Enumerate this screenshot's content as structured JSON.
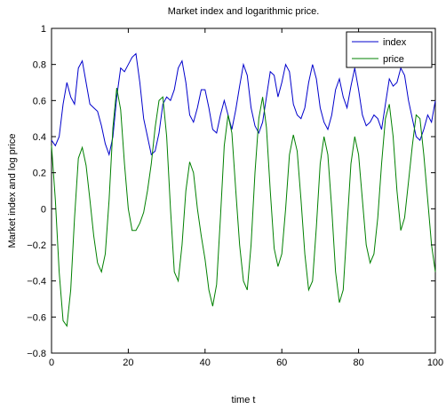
{
  "chart_data": {
    "type": "line",
    "title": "Market index and logarithmic price.",
    "xlabel": "time t",
    "ylabel": "Market index and log price",
    "xlim": [
      0,
      100
    ],
    "ylim": [
      -0.8,
      1
    ],
    "x_ticks": [
      0,
      20,
      40,
      60,
      80,
      100
    ],
    "y_ticks": [
      -0.8,
      -0.6,
      -0.4,
      -0.2,
      0,
      0.2,
      0.4,
      0.6,
      0.8,
      1
    ],
    "x_tick_labels": [
      "0",
      "20",
      "40",
      "60",
      "80",
      "100"
    ],
    "y_tick_labels": [
      "−0.8",
      "−0.6",
      "−0.4",
      "−0.2",
      "0",
      "0.2",
      "0.4",
      "0.6",
      "0.8",
      "1"
    ],
    "grid": false,
    "legend_position": "top-right",
    "series": [
      {
        "name": "index",
        "color": "#0000cc",
        "points": [
          [
            0,
            0.38
          ],
          [
            1,
            0.35
          ],
          [
            2,
            0.4
          ],
          [
            3,
            0.58
          ],
          [
            4,
            0.7
          ],
          [
            5,
            0.62
          ],
          [
            6,
            0.58
          ],
          [
            7,
            0.78
          ],
          [
            8,
            0.82
          ],
          [
            9,
            0.7
          ],
          [
            10,
            0.58
          ],
          [
            11,
            0.56
          ],
          [
            12,
            0.54
          ],
          [
            13,
            0.46
          ],
          [
            14,
            0.36
          ],
          [
            15,
            0.3
          ],
          [
            16,
            0.4
          ],
          [
            17,
            0.62
          ],
          [
            18,
            0.78
          ],
          [
            19,
            0.76
          ],
          [
            20,
            0.8
          ],
          [
            21,
            0.84
          ],
          [
            22,
            0.86
          ],
          [
            23,
            0.7
          ],
          [
            24,
            0.5
          ],
          [
            25,
            0.4
          ],
          [
            26,
            0.3
          ],
          [
            27,
            0.32
          ],
          [
            28,
            0.42
          ],
          [
            29,
            0.58
          ],
          [
            30,
            0.62
          ],
          [
            31,
            0.6
          ],
          [
            32,
            0.66
          ],
          [
            33,
            0.78
          ],
          [
            34,
            0.82
          ],
          [
            35,
            0.7
          ],
          [
            36,
            0.52
          ],
          [
            37,
            0.48
          ],
          [
            38,
            0.56
          ],
          [
            39,
            0.66
          ],
          [
            40,
            0.66
          ],
          [
            41,
            0.56
          ],
          [
            42,
            0.44
          ],
          [
            43,
            0.42
          ],
          [
            44,
            0.52
          ],
          [
            45,
            0.6
          ],
          [
            46,
            0.52
          ],
          [
            47,
            0.44
          ],
          [
            48,
            0.55
          ],
          [
            49,
            0.68
          ],
          [
            50,
            0.8
          ],
          [
            51,
            0.74
          ],
          [
            52,
            0.56
          ],
          [
            53,
            0.46
          ],
          [
            54,
            0.42
          ],
          [
            55,
            0.48
          ],
          [
            56,
            0.62
          ],
          [
            57,
            0.76
          ],
          [
            58,
            0.74
          ],
          [
            59,
            0.62
          ],
          [
            60,
            0.7
          ],
          [
            61,
            0.8
          ],
          [
            62,
            0.76
          ],
          [
            63,
            0.58
          ],
          [
            64,
            0.52
          ],
          [
            65,
            0.5
          ],
          [
            66,
            0.56
          ],
          [
            67,
            0.7
          ],
          [
            68,
            0.8
          ],
          [
            69,
            0.72
          ],
          [
            70,
            0.56
          ],
          [
            71,
            0.48
          ],
          [
            72,
            0.44
          ],
          [
            73,
            0.52
          ],
          [
            74,
            0.66
          ],
          [
            75,
            0.72
          ],
          [
            76,
            0.62
          ],
          [
            77,
            0.56
          ],
          [
            78,
            0.68
          ],
          [
            79,
            0.78
          ],
          [
            80,
            0.66
          ],
          [
            81,
            0.52
          ],
          [
            82,
            0.46
          ],
          [
            83,
            0.48
          ],
          [
            84,
            0.52
          ],
          [
            85,
            0.5
          ],
          [
            86,
            0.44
          ],
          [
            87,
            0.58
          ],
          [
            88,
            0.72
          ],
          [
            89,
            0.68
          ],
          [
            90,
            0.7
          ],
          [
            91,
            0.78
          ],
          [
            92,
            0.74
          ],
          [
            93,
            0.6
          ],
          [
            94,
            0.5
          ],
          [
            95,
            0.4
          ],
          [
            96,
            0.38
          ],
          [
            97,
            0.44
          ],
          [
            98,
            0.52
          ],
          [
            99,
            0.48
          ],
          [
            100,
            0.6
          ]
        ]
      },
      {
        "name": "price",
        "color": "#008000",
        "points": [
          [
            0,
            0.35
          ],
          [
            1,
            0.05
          ],
          [
            2,
            -0.35
          ],
          [
            3,
            -0.62
          ],
          [
            4,
            -0.65
          ],
          [
            5,
            -0.45
          ],
          [
            6,
            -0.05
          ],
          [
            7,
            0.28
          ],
          [
            8,
            0.34
          ],
          [
            9,
            0.24
          ],
          [
            10,
            0.05
          ],
          [
            11,
            -0.15
          ],
          [
            12,
            -0.3
          ],
          [
            13,
            -0.35
          ],
          [
            14,
            -0.25
          ],
          [
            15,
            0.05
          ],
          [
            16,
            0.45
          ],
          [
            17,
            0.67
          ],
          [
            18,
            0.55
          ],
          [
            19,
            0.25
          ],
          [
            20,
            0.0
          ],
          [
            21,
            -0.12
          ],
          [
            22,
            -0.12
          ],
          [
            23,
            -0.08
          ],
          [
            24,
            -0.02
          ],
          [
            25,
            0.1
          ],
          [
            26,
            0.25
          ],
          [
            27,
            0.45
          ],
          [
            28,
            0.6
          ],
          [
            29,
            0.62
          ],
          [
            30,
            0.4
          ],
          [
            31,
            0.0
          ],
          [
            32,
            -0.35
          ],
          [
            33,
            -0.4
          ],
          [
            34,
            -0.2
          ],
          [
            35,
            0.1
          ],
          [
            36,
            0.26
          ],
          [
            37,
            0.2
          ],
          [
            38,
            0.0
          ],
          [
            39,
            -0.15
          ],
          [
            40,
            -0.28
          ],
          [
            41,
            -0.45
          ],
          [
            42,
            -0.54
          ],
          [
            43,
            -0.42
          ],
          [
            44,
            -0.05
          ],
          [
            45,
            0.35
          ],
          [
            46,
            0.52
          ],
          [
            47,
            0.42
          ],
          [
            48,
            0.1
          ],
          [
            49,
            -0.2
          ],
          [
            50,
            -0.4
          ],
          [
            51,
            -0.45
          ],
          [
            52,
            -0.2
          ],
          [
            53,
            0.2
          ],
          [
            54,
            0.5
          ],
          [
            55,
            0.62
          ],
          [
            56,
            0.45
          ],
          [
            57,
            0.1
          ],
          [
            58,
            -0.22
          ],
          [
            59,
            -0.32
          ],
          [
            60,
            -0.25
          ],
          [
            61,
            0.0
          ],
          [
            62,
            0.3
          ],
          [
            63,
            0.41
          ],
          [
            64,
            0.32
          ],
          [
            65,
            0.05
          ],
          [
            66,
            -0.25
          ],
          [
            67,
            -0.45
          ],
          [
            68,
            -0.4
          ],
          [
            69,
            -0.1
          ],
          [
            70,
            0.25
          ],
          [
            71,
            0.4
          ],
          [
            72,
            0.3
          ],
          [
            73,
            0.0
          ],
          [
            74,
            -0.35
          ],
          [
            75,
            -0.52
          ],
          [
            76,
            -0.45
          ],
          [
            77,
            -0.1
          ],
          [
            78,
            0.25
          ],
          [
            79,
            0.4
          ],
          [
            80,
            0.3
          ],
          [
            81,
            0.05
          ],
          [
            82,
            -0.2
          ],
          [
            83,
            -0.3
          ],
          [
            84,
            -0.25
          ],
          [
            85,
            -0.05
          ],
          [
            86,
            0.25
          ],
          [
            87,
            0.5
          ],
          [
            88,
            0.58
          ],
          [
            89,
            0.4
          ],
          [
            90,
            0.1
          ],
          [
            91,
            -0.12
          ],
          [
            92,
            -0.05
          ],
          [
            93,
            0.15
          ],
          [
            94,
            0.35
          ],
          [
            95,
            0.52
          ],
          [
            96,
            0.5
          ],
          [
            97,
            0.3
          ],
          [
            98,
            0.05
          ],
          [
            99,
            -0.2
          ],
          [
            100,
            -0.35
          ]
        ]
      }
    ]
  }
}
